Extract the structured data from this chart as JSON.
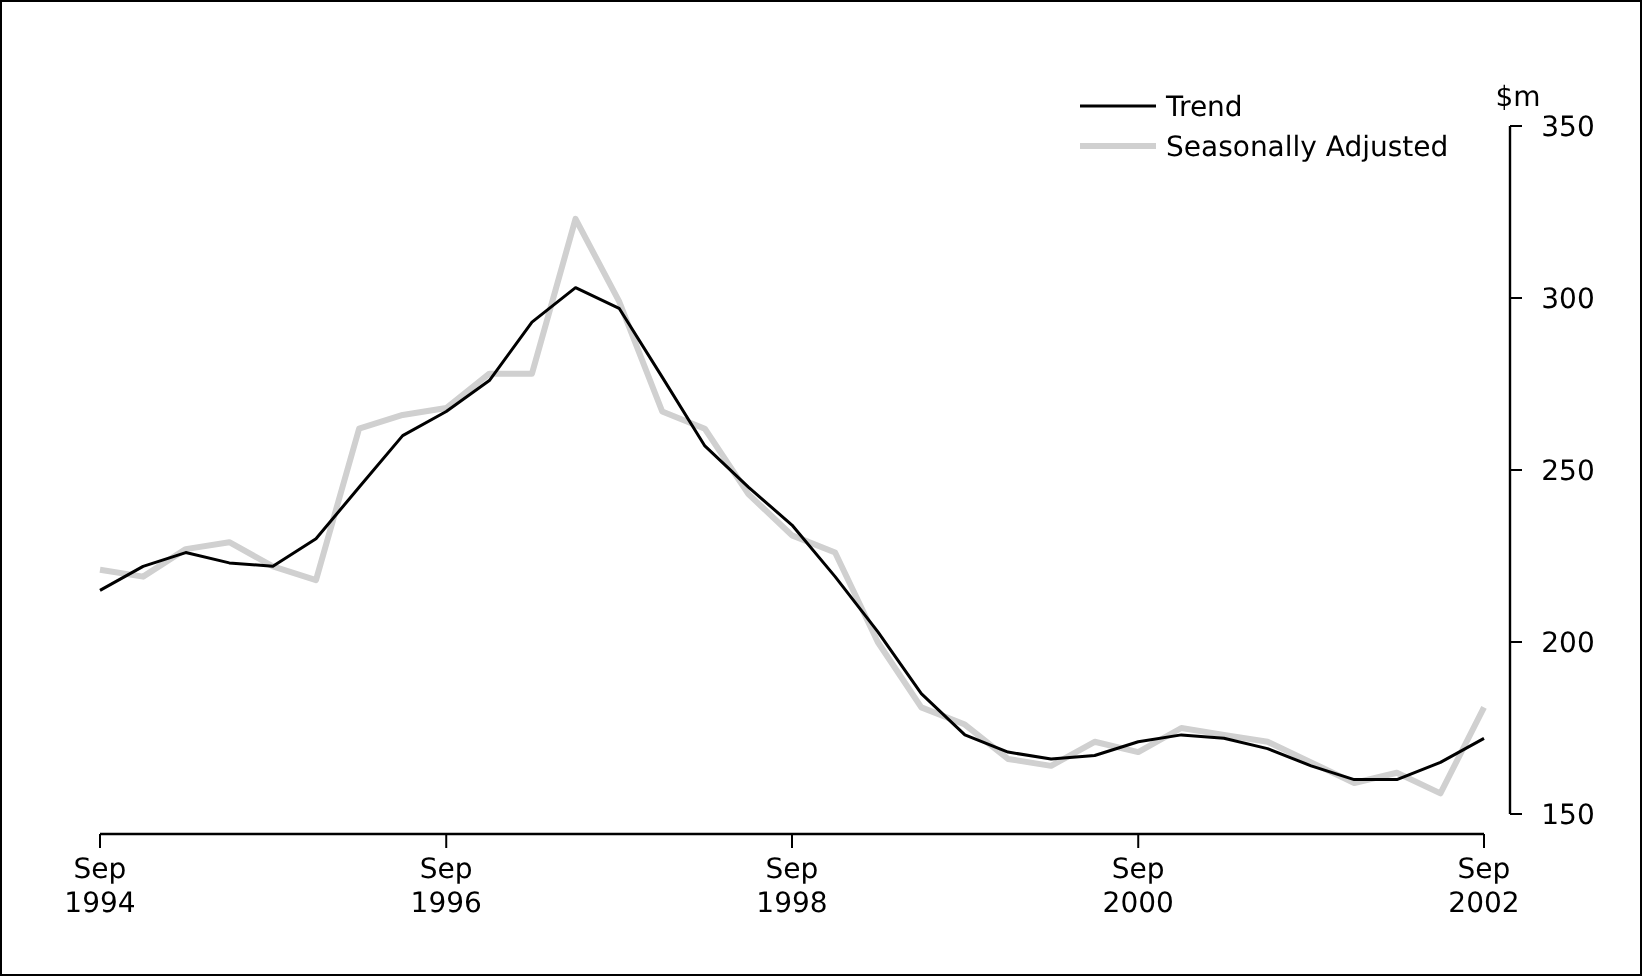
{
  "chart_data": {
    "type": "line",
    "ylabel": "$m",
    "x": [
      "1994-09",
      "1994-12",
      "1995-03",
      "1995-06",
      "1995-09",
      "1995-12",
      "1996-03",
      "1996-06",
      "1996-09",
      "1996-12",
      "1997-03",
      "1997-06",
      "1997-09",
      "1997-12",
      "1998-03",
      "1998-06",
      "1998-09",
      "1998-12",
      "1999-03",
      "1999-06",
      "1999-09",
      "1999-12",
      "2000-03",
      "2000-06",
      "2000-09",
      "2000-12",
      "2001-03",
      "2001-06",
      "2001-09",
      "2001-12",
      "2002-03",
      "2002-06",
      "2002-09"
    ],
    "series": [
      {
        "name": "Trend",
        "color": "#000000",
        "values": [
          215,
          222,
          226,
          223,
          222,
          230,
          245,
          260,
          267,
          276,
          293,
          303,
          297,
          277,
          257,
          245,
          234,
          219,
          203,
          185,
          173,
          168,
          166,
          167,
          171,
          173,
          172,
          169,
          164,
          160,
          160,
          165,
          172
        ]
      },
      {
        "name": "Seasonally Adjusted",
        "color": "#d0d0d0",
        "values": [
          221,
          219,
          227,
          229,
          222,
          218,
          262,
          266,
          268,
          278,
          278,
          323,
          299,
          267,
          262,
          243,
          231,
          226,
          200,
          181,
          176,
          166,
          164,
          171,
          168,
          175,
          173,
          171,
          165,
          159,
          162,
          156,
          181
        ]
      }
    ],
    "xlim": [
      "1994-09",
      "2002-09"
    ],
    "xticks": [
      {
        "value": "1994-09",
        "label": "Sep 1994"
      },
      {
        "value": "1996-09",
        "label": "Sep 1996"
      },
      {
        "value": "1998-09",
        "label": "Sep 1998"
      },
      {
        "value": "2000-09",
        "label": "Sep 2000"
      },
      {
        "value": "2002-09",
        "label": "Sep 2002"
      }
    ],
    "ylim": [
      150,
      350
    ],
    "yticks": [
      150,
      200,
      250,
      300,
      350
    ],
    "legend": "top right",
    "grid": false,
    "marker": "none",
    "line_style": "solid"
  }
}
